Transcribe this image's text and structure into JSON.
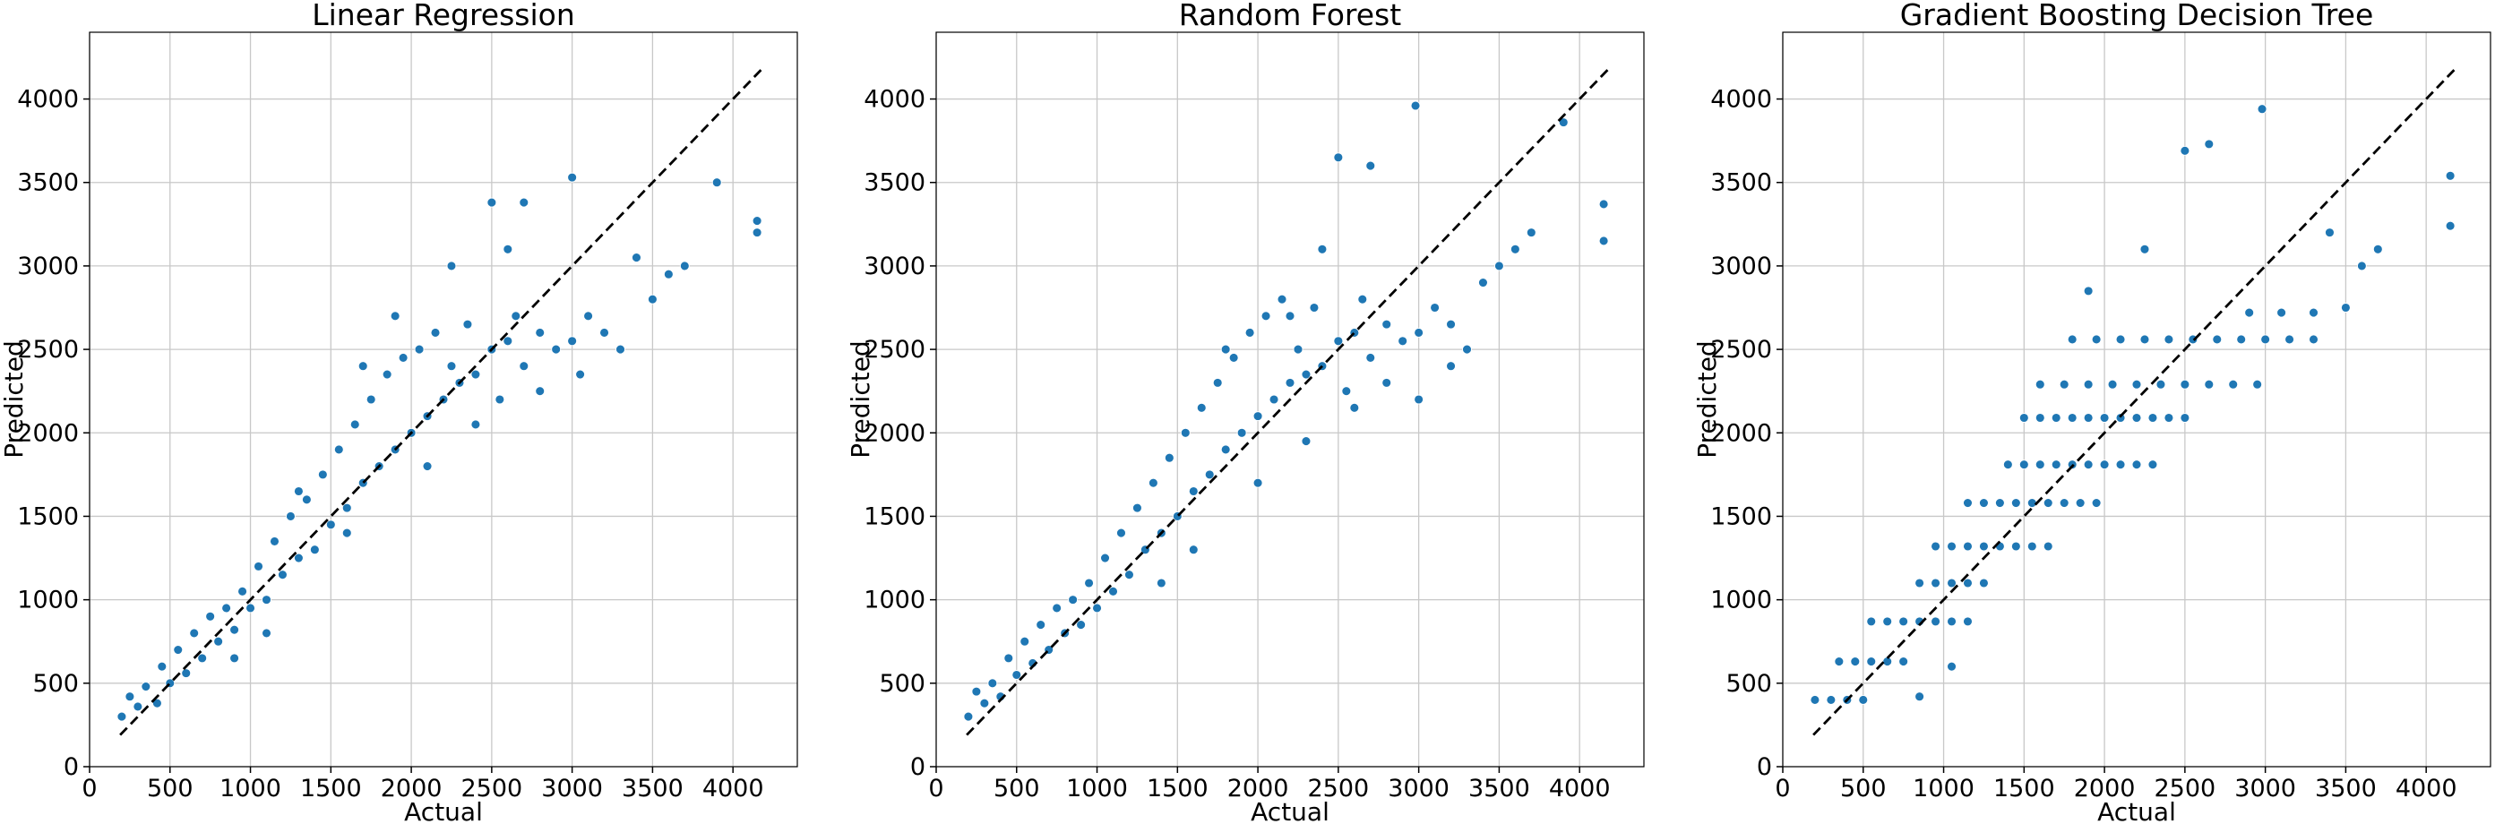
{
  "colors": {
    "points": "#1f77b4",
    "reference_line": "#000000",
    "grid": "#c8c8c8"
  },
  "chart_data": [
    {
      "type": "scatter",
      "title": "Linear Regression",
      "xlabel": "Actual",
      "ylabel": "Predicted",
      "xlim": [
        0,
        4400
      ],
      "ylim": [
        0,
        4400
      ],
      "xticks": [
        0,
        500,
        1000,
        1500,
        2000,
        2500,
        3000,
        3500,
        4000
      ],
      "yticks": [
        0,
        500,
        1000,
        1500,
        2000,
        2500,
        3000,
        3500,
        4000
      ],
      "grid": true,
      "reference_line": {
        "style": "dashed",
        "from": [
          190,
          190
        ],
        "to": [
          4180,
          4180
        ]
      },
      "points": [
        [
          200,
          300
        ],
        [
          250,
          420
        ],
        [
          300,
          360
        ],
        [
          350,
          480
        ],
        [
          420,
          380
        ],
        [
          450,
          600
        ],
        [
          500,
          500
        ],
        [
          550,
          700
        ],
        [
          600,
          560
        ],
        [
          650,
          800
        ],
        [
          700,
          650
        ],
        [
          750,
          900
        ],
        [
          800,
          750
        ],
        [
          850,
          950
        ],
        [
          900,
          820
        ],
        [
          950,
          1050
        ],
        [
          1000,
          950
        ],
        [
          1050,
          1200
        ],
        [
          1100,
          1000
        ],
        [
          1150,
          1350
        ],
        [
          1200,
          1150
        ],
        [
          1250,
          1500
        ],
        [
          1300,
          1250
        ],
        [
          1350,
          1600
        ],
        [
          1400,
          1300
        ],
        [
          1450,
          1750
        ],
        [
          1500,
          1450
        ],
        [
          1550,
          1900
        ],
        [
          1600,
          1550
        ],
        [
          1650,
          2050
        ],
        [
          1700,
          1700
        ],
        [
          1750,
          2200
        ],
        [
          1800,
          1800
        ],
        [
          1850,
          2350
        ],
        [
          1900,
          1900
        ],
        [
          1950,
          2450
        ],
        [
          2000,
          2000
        ],
        [
          2050,
          2500
        ],
        [
          2100,
          2100
        ],
        [
          2150,
          2600
        ],
        [
          2200,
          2200
        ],
        [
          2250,
          2400
        ],
        [
          2300,
          2300
        ],
        [
          2350,
          2650
        ],
        [
          2400,
          2350
        ],
        [
          2500,
          2500
        ],
        [
          2550,
          2200
        ],
        [
          2600,
          2550
        ],
        [
          2650,
          2700
        ],
        [
          2700,
          2400
        ],
        [
          2800,
          2600
        ],
        [
          2900,
          2500
        ],
        [
          3000,
          2550
        ],
        [
          3050,
          2350
        ],
        [
          3100,
          2700
        ],
        [
          3200,
          2600
        ],
        [
          3300,
          2500
        ],
        [
          3400,
          3050
        ],
        [
          3500,
          2800
        ],
        [
          3600,
          2950
        ],
        [
          3700,
          3000
        ],
        [
          2500,
          3380
        ],
        [
          2600,
          3100
        ],
        [
          2700,
          3380
        ],
        [
          3000,
          3530
        ],
        [
          3900,
          3500
        ],
        [
          4150,
          3270
        ],
        [
          4150,
          3200
        ],
        [
          1700,
          2400
        ],
        [
          1900,
          2700
        ],
        [
          2250,
          3000
        ],
        [
          1300,
          1650
        ],
        [
          1100,
          800
        ],
        [
          900,
          650
        ],
        [
          1600,
          1400
        ],
        [
          2100,
          1800
        ],
        [
          2400,
          2050
        ],
        [
          2800,
          2250
        ]
      ]
    },
    {
      "type": "scatter",
      "title": "Random Forest",
      "xlabel": "Actual",
      "ylabel": "Predicted",
      "xlim": [
        0,
        4400
      ],
      "ylim": [
        0,
        4400
      ],
      "xticks": [
        0,
        500,
        1000,
        1500,
        2000,
        2500,
        3000,
        3500,
        4000
      ],
      "yticks": [
        0,
        500,
        1000,
        1500,
        2000,
        2500,
        3000,
        3500,
        4000
      ],
      "grid": true,
      "reference_line": {
        "style": "dashed",
        "from": [
          190,
          190
        ],
        "to": [
          4180,
          4180
        ]
      },
      "points": [
        [
          200,
          300
        ],
        [
          250,
          450
        ],
        [
          300,
          380
        ],
        [
          350,
          500
        ],
        [
          400,
          420
        ],
        [
          450,
          650
        ],
        [
          500,
          550
        ],
        [
          550,
          750
        ],
        [
          600,
          620
        ],
        [
          650,
          850
        ],
        [
          700,
          700
        ],
        [
          750,
          950
        ],
        [
          800,
          800
        ],
        [
          850,
          1000
        ],
        [
          900,
          850
        ],
        [
          950,
          1100
        ],
        [
          1000,
          950
        ],
        [
          1050,
          1250
        ],
        [
          1100,
          1050
        ],
        [
          1150,
          1400
        ],
        [
          1200,
          1150
        ],
        [
          1250,
          1550
        ],
        [
          1300,
          1300
        ],
        [
          1350,
          1700
        ],
        [
          1400,
          1400
        ],
        [
          1450,
          1850
        ],
        [
          1500,
          1500
        ],
        [
          1550,
          2000
        ],
        [
          1600,
          1650
        ],
        [
          1650,
          2150
        ],
        [
          1700,
          1750
        ],
        [
          1750,
          2300
        ],
        [
          1800,
          1900
        ],
        [
          1850,
          2450
        ],
        [
          1900,
          2000
        ],
        [
          1950,
          2600
        ],
        [
          2000,
          2100
        ],
        [
          2050,
          2700
        ],
        [
          2100,
          2200
        ],
        [
          2150,
          2800
        ],
        [
          2200,
          2300
        ],
        [
          2250,
          2500
        ],
        [
          2300,
          2350
        ],
        [
          2350,
          2750
        ],
        [
          2400,
          2400
        ],
        [
          2500,
          2550
        ],
        [
          2550,
          2250
        ],
        [
          2600,
          2600
        ],
        [
          2650,
          2800
        ],
        [
          2700,
          2450
        ],
        [
          2800,
          2650
        ],
        [
          2900,
          2550
        ],
        [
          3000,
          2600
        ],
        [
          3100,
          2750
        ],
        [
          3200,
          2650
        ],
        [
          3300,
          2500
        ],
        [
          3400,
          2900
        ],
        [
          3500,
          3000
        ],
        [
          3600,
          3100
        ],
        [
          3700,
          3200
        ],
        [
          2500,
          3650
        ],
        [
          2700,
          3600
        ],
        [
          2980,
          3960
        ],
        [
          3900,
          3860
        ],
        [
          4150,
          3370
        ],
        [
          4150,
          3150
        ],
        [
          2200,
          2700
        ],
        [
          2400,
          3100
        ],
        [
          1800,
          2500
        ],
        [
          1400,
          1100
        ],
        [
          1600,
          1300
        ],
        [
          2000,
          1700
        ],
        [
          2300,
          1950
        ],
        [
          2600,
          2150
        ],
        [
          2800,
          2300
        ],
        [
          3000,
          2200
        ],
        [
          3200,
          2400
        ]
      ]
    },
    {
      "type": "scatter",
      "title": "Gradient Boosting Decision Tree",
      "xlabel": "Actual",
      "ylabel": "Predicted",
      "xlim": [
        0,
        4400
      ],
      "ylim": [
        0,
        4400
      ],
      "xticks": [
        0,
        500,
        1000,
        1500,
        2000,
        2500,
        3000,
        3500,
        4000
      ],
      "yticks": [
        0,
        500,
        1000,
        1500,
        2000,
        2500,
        3000,
        3500,
        4000
      ],
      "grid": true,
      "reference_line": {
        "style": "dashed",
        "from": [
          190,
          190
        ],
        "to": [
          4180,
          4180
        ]
      },
      "points": [
        [
          200,
          400
        ],
        [
          300,
          400
        ],
        [
          400,
          400
        ],
        [
          500,
          400
        ],
        [
          350,
          630
        ],
        [
          450,
          630
        ],
        [
          550,
          630
        ],
        [
          650,
          630
        ],
        [
          750,
          630
        ],
        [
          550,
          870
        ],
        [
          650,
          870
        ],
        [
          750,
          870
        ],
        [
          850,
          870
        ],
        [
          950,
          870
        ],
        [
          1050,
          870
        ],
        [
          1150,
          870
        ],
        [
          850,
          1100
        ],
        [
          950,
          1100
        ],
        [
          1050,
          1100
        ],
        [
          1150,
          1100
        ],
        [
          1250,
          1100
        ],
        [
          950,
          1320
        ],
        [
          1050,
          1320
        ],
        [
          1150,
          1320
        ],
        [
          1250,
          1320
        ],
        [
          1350,
          1320
        ],
        [
          1450,
          1320
        ],
        [
          1550,
          1320
        ],
        [
          1650,
          1320
        ],
        [
          1150,
          1580
        ],
        [
          1250,
          1580
        ],
        [
          1350,
          1580
        ],
        [
          1450,
          1580
        ],
        [
          1550,
          1580
        ],
        [
          1650,
          1580
        ],
        [
          1750,
          1580
        ],
        [
          1850,
          1580
        ],
        [
          1950,
          1580
        ],
        [
          1400,
          1810
        ],
        [
          1500,
          1810
        ],
        [
          1600,
          1810
        ],
        [
          1700,
          1810
        ],
        [
          1800,
          1810
        ],
        [
          1900,
          1810
        ],
        [
          2000,
          1810
        ],
        [
          2100,
          1810
        ],
        [
          2200,
          1810
        ],
        [
          2300,
          1810
        ],
        [
          1500,
          2090
        ],
        [
          1600,
          2090
        ],
        [
          1700,
          2090
        ],
        [
          1800,
          2090
        ],
        [
          1900,
          2090
        ],
        [
          2000,
          2090
        ],
        [
          2100,
          2090
        ],
        [
          2200,
          2090
        ],
        [
          2300,
          2090
        ],
        [
          2400,
          2090
        ],
        [
          2500,
          2090
        ],
        [
          1600,
          2290
        ],
        [
          1750,
          2290
        ],
        [
          1900,
          2290
        ],
        [
          2050,
          2290
        ],
        [
          2200,
          2290
        ],
        [
          2350,
          2290
        ],
        [
          2500,
          2290
        ],
        [
          2650,
          2290
        ],
        [
          2800,
          2290
        ],
        [
          2950,
          2290
        ],
        [
          1800,
          2560
        ],
        [
          1950,
          2560
        ],
        [
          2100,
          2560
        ],
        [
          2250,
          2560
        ],
        [
          2400,
          2560
        ],
        [
          2550,
          2560
        ],
        [
          2700,
          2560
        ],
        [
          2850,
          2560
        ],
        [
          3000,
          2560
        ],
        [
          3150,
          2560
        ],
        [
          3300,
          2560
        ],
        [
          2900,
          2720
        ],
        [
          3100,
          2720
        ],
        [
          3300,
          2720
        ],
        [
          3500,
          2750
        ],
        [
          3600,
          3000
        ],
        [
          3700,
          3100
        ],
        [
          2500,
          3690
        ],
        [
          2650,
          3730
        ],
        [
          2980,
          3940
        ],
        [
          4150,
          3540
        ],
        [
          4150,
          3240
        ],
        [
          2250,
          3100
        ],
        [
          1900,
          2850
        ],
        [
          3400,
          3200
        ],
        [
          850,
          420
        ],
        [
          1050,
          600
        ]
      ]
    }
  ]
}
